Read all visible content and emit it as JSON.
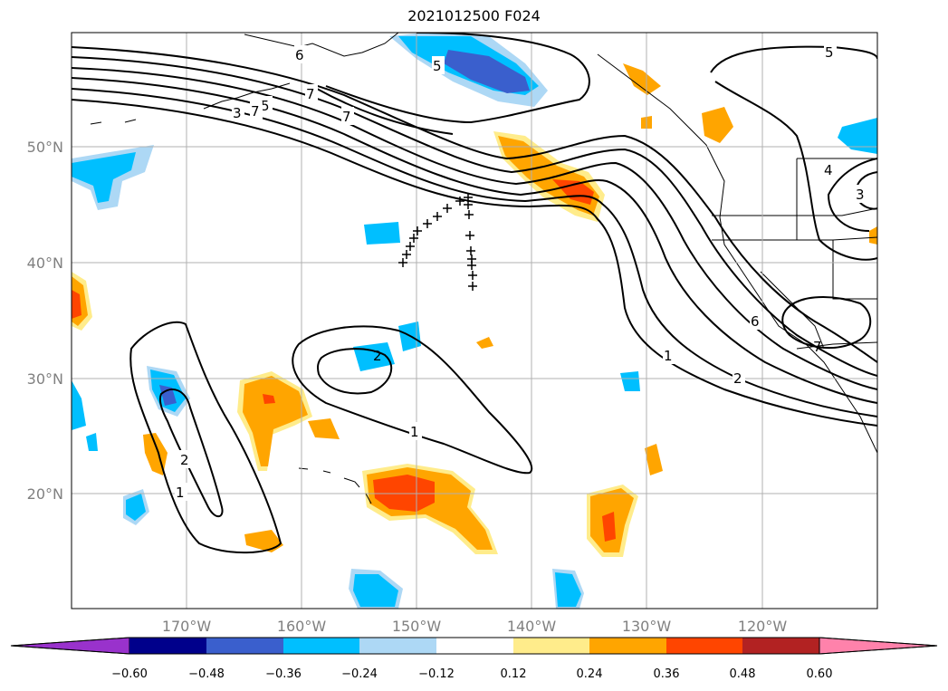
{
  "title": "2021012500 F024",
  "lat_labels": [
    "50°N",
    "40°N",
    "30°N",
    "20°N"
  ],
  "lon_labels": [
    "170°W",
    "160°W",
    "150°W",
    "140°W",
    "130°W",
    "120°W"
  ],
  "colorbar": {
    "tick_labels": [
      "−0.60",
      "−0.48",
      "−0.36",
      "−0.24",
      "−0.12",
      "0.12",
      "0.24",
      "0.36",
      "0.48",
      "0.60"
    ],
    "colors": [
      "#9932cc",
      "#00008b",
      "#3a5fcd",
      "#00bfff",
      "#add8f5",
      "#ffffff",
      "#ffec8b",
      "#ffa500",
      "#ff4500",
      "#b22222",
      "#ff82ab"
    ]
  },
  "contour_labels": [
    "6",
    "5",
    "7",
    "7",
    "5",
    "3",
    "7",
    "5",
    "4",
    "3",
    "6",
    "7",
    "1",
    "2",
    "2",
    "1",
    "2",
    "1"
  ]
}
